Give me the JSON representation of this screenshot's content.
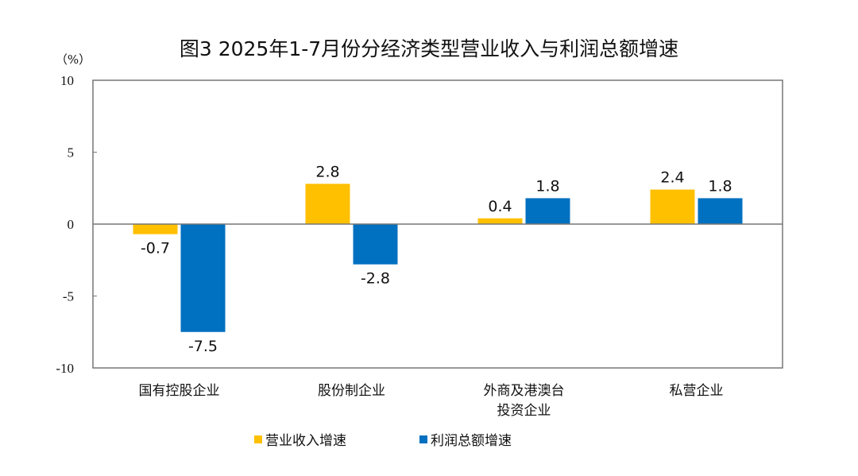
{
  "chart_data": {
    "type": "bar",
    "title": "图3  2025年1-7月份分经济类型营业收入与利润总额增速",
    "ylabel": "（%）",
    "ylim": [
      -10,
      10
    ],
    "yticks": [
      10,
      5,
      0,
      -5,
      -10
    ],
    "categories": [
      "国有控股企业",
      "股份制企业",
      "外商及港澳台\n投资企业",
      "私营企业"
    ],
    "series": [
      {
        "name": "营业收入增速",
        "color": "#FFC000",
        "values": [
          -0.7,
          2.8,
          0.4,
          2.4
        ]
      },
      {
        "name": "利润总额增速",
        "color": "#0070C0",
        "values": [
          -7.5,
          -2.8,
          1.8,
          1.8
        ]
      }
    ],
    "grid": false,
    "legend": "bottom"
  }
}
